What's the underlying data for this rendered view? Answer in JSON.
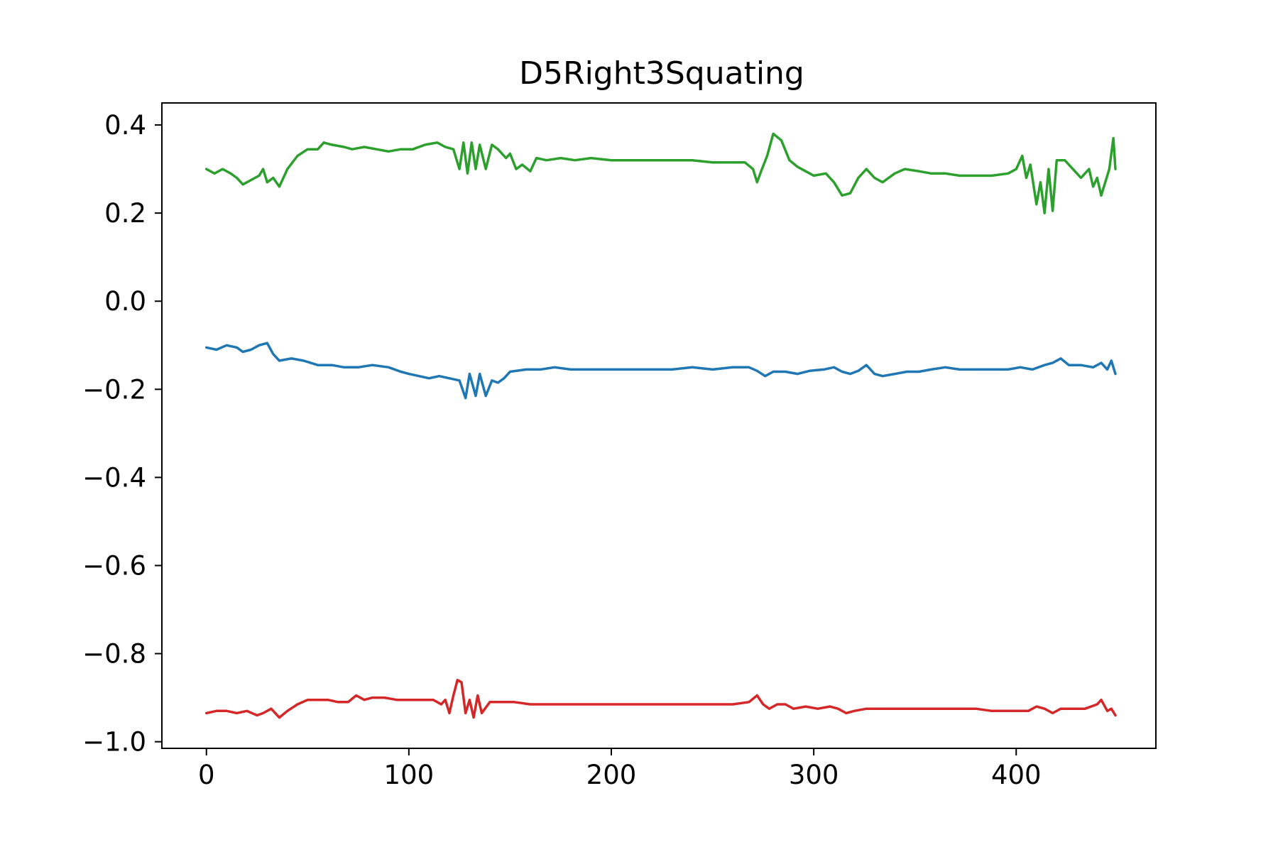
{
  "chart_data": {
    "type": "line",
    "title": "D5Right3Squating",
    "xlabel": "",
    "ylabel": "",
    "xlim": [
      -22,
      469
    ],
    "ylim": [
      -1.015,
      0.45
    ],
    "x_ticks": [
      0,
      100,
      200,
      300,
      400
    ],
    "x_tick_labels": [
      "0",
      "100",
      "200",
      "300",
      "400"
    ],
    "y_ticks": [
      0.4,
      0.2,
      0.0,
      -0.2,
      -0.4,
      -0.6,
      -0.8,
      -1.0
    ],
    "y_tick_labels": [
      "0.4",
      "0.2",
      "0.0",
      "−0.2",
      "−0.4",
      "−0.6",
      "−0.8",
      "−1.0"
    ],
    "grid": false,
    "legend": "none",
    "series": [
      {
        "color": "#1f77b4",
        "points": [
          [
            0,
            -0.105
          ],
          [
            5,
            -0.11
          ],
          [
            10,
            -0.1
          ],
          [
            15,
            -0.105
          ],
          [
            18,
            -0.115
          ],
          [
            22,
            -0.11
          ],
          [
            26,
            -0.1
          ],
          [
            30,
            -0.095
          ],
          [
            33,
            -0.12
          ],
          [
            36,
            -0.135
          ],
          [
            42,
            -0.13
          ],
          [
            48,
            -0.135
          ],
          [
            55,
            -0.145
          ],
          [
            62,
            -0.145
          ],
          [
            68,
            -0.15
          ],
          [
            75,
            -0.15
          ],
          [
            82,
            -0.145
          ],
          [
            90,
            -0.15
          ],
          [
            96,
            -0.16
          ],
          [
            100,
            -0.165
          ],
          [
            105,
            -0.17
          ],
          [
            110,
            -0.175
          ],
          [
            115,
            -0.17
          ],
          [
            120,
            -0.175
          ],
          [
            125,
            -0.18
          ],
          [
            128,
            -0.22
          ],
          [
            130,
            -0.165
          ],
          [
            133,
            -0.215
          ],
          [
            135,
            -0.165
          ],
          [
            138,
            -0.215
          ],
          [
            141,
            -0.18
          ],
          [
            144,
            -0.185
          ],
          [
            147,
            -0.175
          ],
          [
            150,
            -0.16
          ],
          [
            158,
            -0.155
          ],
          [
            165,
            -0.155
          ],
          [
            172,
            -0.15
          ],
          [
            180,
            -0.155
          ],
          [
            190,
            -0.155
          ],
          [
            200,
            -0.155
          ],
          [
            210,
            -0.155
          ],
          [
            220,
            -0.155
          ],
          [
            230,
            -0.155
          ],
          [
            240,
            -0.15
          ],
          [
            250,
            -0.155
          ],
          [
            260,
            -0.15
          ],
          [
            268,
            -0.15
          ],
          [
            272,
            -0.158
          ],
          [
            276,
            -0.17
          ],
          [
            280,
            -0.16
          ],
          [
            286,
            -0.16
          ],
          [
            292,
            -0.165
          ],
          [
            298,
            -0.158
          ],
          [
            305,
            -0.155
          ],
          [
            310,
            -0.15
          ],
          [
            314,
            -0.16
          ],
          [
            318,
            -0.165
          ],
          [
            322,
            -0.158
          ],
          [
            326,
            -0.145
          ],
          [
            330,
            -0.165
          ],
          [
            334,
            -0.17
          ],
          [
            340,
            -0.165
          ],
          [
            346,
            -0.16
          ],
          [
            352,
            -0.16
          ],
          [
            358,
            -0.155
          ],
          [
            365,
            -0.15
          ],
          [
            372,
            -0.155
          ],
          [
            380,
            -0.155
          ],
          [
            388,
            -0.155
          ],
          [
            396,
            -0.155
          ],
          [
            402,
            -0.15
          ],
          [
            408,
            -0.155
          ],
          [
            414,
            -0.145
          ],
          [
            418,
            -0.14
          ],
          [
            422,
            -0.13
          ],
          [
            426,
            -0.145
          ],
          [
            432,
            -0.145
          ],
          [
            438,
            -0.15
          ],
          [
            442,
            -0.14
          ],
          [
            445,
            -0.155
          ],
          [
            447,
            -0.135
          ],
          [
            449,
            -0.165
          ]
        ]
      },
      {
        "color": "#2ca02c",
        "points": [
          [
            0,
            0.3
          ],
          [
            4,
            0.29
          ],
          [
            8,
            0.3
          ],
          [
            12,
            0.29
          ],
          [
            15,
            0.28
          ],
          [
            18,
            0.265
          ],
          [
            22,
            0.275
          ],
          [
            26,
            0.285
          ],
          [
            28,
            0.3
          ],
          [
            30,
            0.27
          ],
          [
            33,
            0.28
          ],
          [
            36,
            0.26
          ],
          [
            40,
            0.3
          ],
          [
            45,
            0.33
          ],
          [
            50,
            0.345
          ],
          [
            55,
            0.345
          ],
          [
            58,
            0.36
          ],
          [
            62,
            0.355
          ],
          [
            68,
            0.35
          ],
          [
            72,
            0.345
          ],
          [
            78,
            0.35
          ],
          [
            84,
            0.345
          ],
          [
            90,
            0.34
          ],
          [
            96,
            0.345
          ],
          [
            102,
            0.345
          ],
          [
            108,
            0.355
          ],
          [
            114,
            0.36
          ],
          [
            118,
            0.35
          ],
          [
            122,
            0.345
          ],
          [
            125,
            0.3
          ],
          [
            127,
            0.36
          ],
          [
            129,
            0.29
          ],
          [
            131,
            0.36
          ],
          [
            133,
            0.3
          ],
          [
            135,
            0.355
          ],
          [
            138,
            0.3
          ],
          [
            141,
            0.355
          ],
          [
            144,
            0.345
          ],
          [
            148,
            0.325
          ],
          [
            150,
            0.335
          ],
          [
            153,
            0.3
          ],
          [
            156,
            0.31
          ],
          [
            160,
            0.295
          ],
          [
            163,
            0.325
          ],
          [
            168,
            0.32
          ],
          [
            175,
            0.325
          ],
          [
            182,
            0.32
          ],
          [
            190,
            0.325
          ],
          [
            200,
            0.32
          ],
          [
            210,
            0.32
          ],
          [
            220,
            0.32
          ],
          [
            230,
            0.32
          ],
          [
            240,
            0.32
          ],
          [
            250,
            0.315
          ],
          [
            260,
            0.315
          ],
          [
            266,
            0.315
          ],
          [
            270,
            0.3
          ],
          [
            272,
            0.27
          ],
          [
            274,
            0.295
          ],
          [
            277,
            0.33
          ],
          [
            280,
            0.38
          ],
          [
            284,
            0.365
          ],
          [
            288,
            0.32
          ],
          [
            292,
            0.305
          ],
          [
            296,
            0.295
          ],
          [
            300,
            0.285
          ],
          [
            306,
            0.29
          ],
          [
            310,
            0.27
          ],
          [
            314,
            0.24
          ],
          [
            318,
            0.245
          ],
          [
            322,
            0.28
          ],
          [
            326,
            0.3
          ],
          [
            330,
            0.28
          ],
          [
            334,
            0.27
          ],
          [
            340,
            0.29
          ],
          [
            345,
            0.3
          ],
          [
            352,
            0.295
          ],
          [
            358,
            0.29
          ],
          [
            365,
            0.29
          ],
          [
            372,
            0.285
          ],
          [
            380,
            0.285
          ],
          [
            388,
            0.285
          ],
          [
            396,
            0.29
          ],
          [
            400,
            0.3
          ],
          [
            403,
            0.33
          ],
          [
            405,
            0.28
          ],
          [
            407,
            0.31
          ],
          [
            410,
            0.22
          ],
          [
            412,
            0.27
          ],
          [
            414,
            0.2
          ],
          [
            416,
            0.3
          ],
          [
            418,
            0.205
          ],
          [
            420,
            0.32
          ],
          [
            424,
            0.32
          ],
          [
            428,
            0.3
          ],
          [
            432,
            0.28
          ],
          [
            436,
            0.3
          ],
          [
            438,
            0.26
          ],
          [
            440,
            0.28
          ],
          [
            442,
            0.24
          ],
          [
            446,
            0.3
          ],
          [
            448,
            0.37
          ],
          [
            449,
            0.3
          ]
        ]
      },
      {
        "color": "#d62728",
        "points": [
          [
            0,
            -0.935
          ],
          [
            5,
            -0.93
          ],
          [
            10,
            -0.93
          ],
          [
            15,
            -0.935
          ],
          [
            20,
            -0.93
          ],
          [
            25,
            -0.94
          ],
          [
            28,
            -0.935
          ],
          [
            32,
            -0.925
          ],
          [
            36,
            -0.945
          ],
          [
            40,
            -0.93
          ],
          [
            45,
            -0.915
          ],
          [
            50,
            -0.905
          ],
          [
            55,
            -0.905
          ],
          [
            60,
            -0.905
          ],
          [
            65,
            -0.91
          ],
          [
            70,
            -0.91
          ],
          [
            74,
            -0.895
          ],
          [
            78,
            -0.905
          ],
          [
            82,
            -0.9
          ],
          [
            88,
            -0.9
          ],
          [
            94,
            -0.905
          ],
          [
            100,
            -0.905
          ],
          [
            106,
            -0.905
          ],
          [
            112,
            -0.905
          ],
          [
            116,
            -0.915
          ],
          [
            118,
            -0.905
          ],
          [
            120,
            -0.935
          ],
          [
            122,
            -0.895
          ],
          [
            124,
            -0.86
          ],
          [
            126,
            -0.865
          ],
          [
            128,
            -0.935
          ],
          [
            130,
            -0.905
          ],
          [
            132,
            -0.945
          ],
          [
            134,
            -0.895
          ],
          [
            136,
            -0.935
          ],
          [
            140,
            -0.91
          ],
          [
            146,
            -0.91
          ],
          [
            152,
            -0.91
          ],
          [
            160,
            -0.915
          ],
          [
            170,
            -0.915
          ],
          [
            180,
            -0.915
          ],
          [
            190,
            -0.915
          ],
          [
            200,
            -0.915
          ],
          [
            210,
            -0.915
          ],
          [
            220,
            -0.915
          ],
          [
            230,
            -0.915
          ],
          [
            240,
            -0.915
          ],
          [
            250,
            -0.915
          ],
          [
            260,
            -0.915
          ],
          [
            268,
            -0.91
          ],
          [
            272,
            -0.895
          ],
          [
            275,
            -0.915
          ],
          [
            278,
            -0.925
          ],
          [
            282,
            -0.915
          ],
          [
            286,
            -0.915
          ],
          [
            290,
            -0.925
          ],
          [
            296,
            -0.92
          ],
          [
            302,
            -0.925
          ],
          [
            308,
            -0.92
          ],
          [
            312,
            -0.925
          ],
          [
            316,
            -0.935
          ],
          [
            320,
            -0.93
          ],
          [
            326,
            -0.925
          ],
          [
            332,
            -0.925
          ],
          [
            340,
            -0.925
          ],
          [
            348,
            -0.925
          ],
          [
            356,
            -0.925
          ],
          [
            364,
            -0.925
          ],
          [
            372,
            -0.925
          ],
          [
            380,
            -0.925
          ],
          [
            388,
            -0.93
          ],
          [
            396,
            -0.93
          ],
          [
            402,
            -0.93
          ],
          [
            406,
            -0.93
          ],
          [
            410,
            -0.92
          ],
          [
            414,
            -0.925
          ],
          [
            418,
            -0.935
          ],
          [
            422,
            -0.925
          ],
          [
            428,
            -0.925
          ],
          [
            434,
            -0.925
          ],
          [
            440,
            -0.915
          ],
          [
            442,
            -0.905
          ],
          [
            445,
            -0.93
          ],
          [
            447,
            -0.925
          ],
          [
            449,
            -0.94
          ]
        ]
      }
    ]
  }
}
